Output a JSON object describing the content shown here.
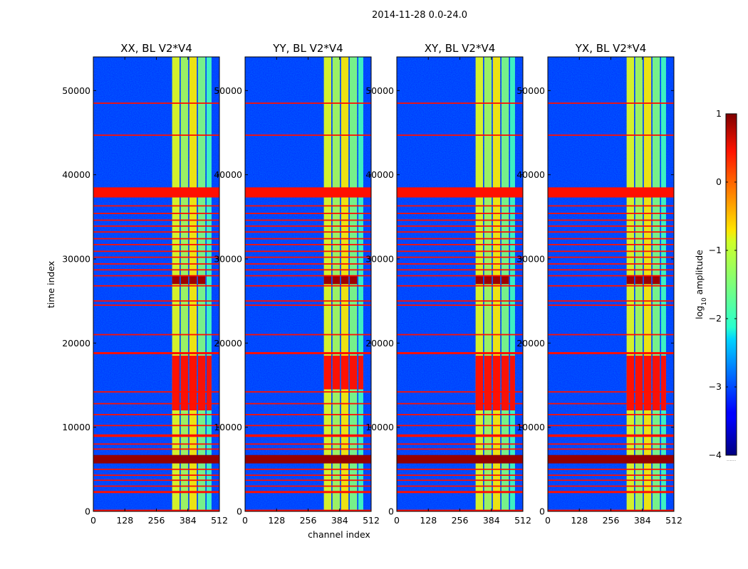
{
  "figure": {
    "suptitle": "2014-11-28 0.0-24.0"
  },
  "chart_data": {
    "type": "heatmap",
    "title": "2014-11-28 0.0-24.0",
    "xlabel": "channel index",
    "ylabel": "time index",
    "xlim": [
      0,
      512
    ],
    "ylim": [
      0,
      54000
    ],
    "x_ticks": [
      0,
      128,
      256,
      384,
      512
    ],
    "x_tick_labels": [
      "0",
      "128",
      "256",
      "384",
      "512"
    ],
    "y_ticks": [
      0,
      10000,
      20000,
      30000,
      40000,
      50000
    ],
    "y_tick_labels": [
      "0",
      "10000",
      "20000",
      "30000",
      "40000",
      "50000"
    ],
    "colormap": "jet",
    "panels": [
      {
        "title": "XX, BL V2*V4",
        "bright_segment": [
          12000,
          18500
        ]
      },
      {
        "title": "YY, BL V2*V4",
        "bright_segment": [
          14500,
          18500
        ]
      },
      {
        "title": "XY, BL V2*V4",
        "bright_segment": [
          12000,
          18500
        ]
      },
      {
        "title": "YX, BL V2*V4",
        "bright_segment": [
          12000,
          18500
        ]
      }
    ],
    "colorbar": {
      "label": "log10 amplitude",
      "label_base": "log",
      "label_sub": "10",
      "label_rest": " amplitude",
      "range": [
        -4,
        1
      ],
      "ticks": [
        1,
        0,
        -1,
        -2,
        -3,
        -4
      ],
      "tick_labels": [
        "1",
        "0",
        "−1",
        "−2",
        "−3",
        "−4"
      ],
      "extra_label": "......"
    },
    "band_channels": [
      {
        "start": 320,
        "end": 350,
        "level": -1.0
      },
      {
        "start": 355,
        "end": 385,
        "level": -1.3
      },
      {
        "start": 390,
        "end": 420,
        "level": -0.8
      },
      {
        "start": 425,
        "end": 455,
        "level": -1.5
      },
      {
        "start": 460,
        "end": 480,
        "level": -1.8
      }
    ],
    "flagged_rows": [
      {
        "t": 37900,
        "thickness": 1200,
        "level": 0.3
      },
      {
        "t": 6200,
        "thickness": 1000,
        "level": 0.9
      },
      {
        "t": 48500,
        "thickness": 150,
        "level": 0.3
      },
      {
        "t": 44700,
        "thickness": 150,
        "level": 0.3
      },
      {
        "t": 36300,
        "thickness": 150,
        "level": 0.3
      },
      {
        "t": 35400,
        "thickness": 150,
        "level": 0.3
      },
      {
        "t": 34600,
        "thickness": 150,
        "level": 0.3
      },
      {
        "t": 33900,
        "thickness": 150,
        "level": 0.3
      },
      {
        "t": 33200,
        "thickness": 150,
        "level": 0.3
      },
      {
        "t": 32400,
        "thickness": 150,
        "level": 0.3
      },
      {
        "t": 31700,
        "thickness": 150,
        "level": 0.3
      },
      {
        "t": 30900,
        "thickness": 150,
        "level": 0.3
      },
      {
        "t": 30200,
        "thickness": 150,
        "level": 0.3
      },
      {
        "t": 29400,
        "thickness": 150,
        "level": 0.3
      },
      {
        "t": 28700,
        "thickness": 150,
        "level": 0.3
      },
      {
        "t": 28000,
        "thickness": 150,
        "level": 0.3
      },
      {
        "t": 26800,
        "thickness": 150,
        "level": 0.3
      },
      {
        "t": 25000,
        "thickness": 150,
        "level": 0.3
      },
      {
        "t": 24500,
        "thickness": 150,
        "level": 0.3
      },
      {
        "t": 21000,
        "thickness": 150,
        "level": 0.3
      },
      {
        "t": 18800,
        "thickness": 250,
        "level": 0.3
      },
      {
        "t": 14200,
        "thickness": 150,
        "level": 0.3
      },
      {
        "t": 12800,
        "thickness": 150,
        "level": 0.3
      },
      {
        "t": 11500,
        "thickness": 150,
        "level": 0.3
      },
      {
        "t": 10200,
        "thickness": 150,
        "level": 0.3
      },
      {
        "t": 9000,
        "thickness": 300,
        "level": 0.3
      },
      {
        "t": 8000,
        "thickness": 150,
        "level": 0.3
      },
      {
        "t": 7400,
        "thickness": 150,
        "level": 0.3
      },
      {
        "t": 5000,
        "thickness": 150,
        "level": 0.3
      },
      {
        "t": 4300,
        "thickness": 150,
        "level": 0.3
      },
      {
        "t": 3700,
        "thickness": 150,
        "level": 0.3
      },
      {
        "t": 3000,
        "thickness": 150,
        "level": 0.3
      },
      {
        "t": 2300,
        "thickness": 250,
        "level": 0.3
      },
      {
        "t": 100,
        "thickness": 200,
        "level": 0.3
      }
    ],
    "hot_segment": {
      "start": 27000,
      "end": 28000
    }
  }
}
